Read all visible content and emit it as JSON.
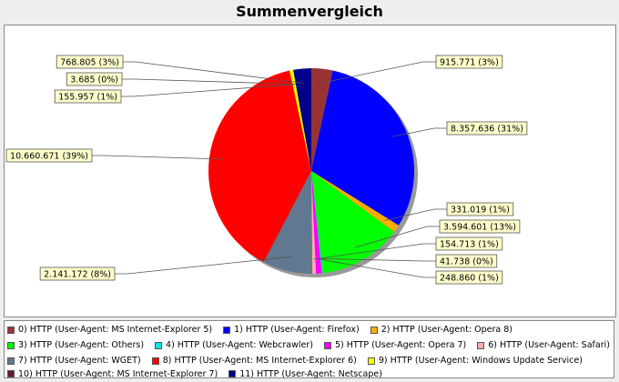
{
  "chart_data": {
    "type": "pie",
    "title": "Summenvergleich",
    "slices": [
      {
        "legend": "0) HTTP (User-Agent: MS Internet-Explorer 5)",
        "value": 915771,
        "label": "915.771 (3%)",
        "color": "#993333"
      },
      {
        "legend": "1) HTTP (User-Agent: Firefox)",
        "value": 8357636,
        "label": "8.357.636 (31%)",
        "color": "#0000ff"
      },
      {
        "legend": "2) HTTP (User-Agent: Opera 8)",
        "value": 331019,
        "label": "331.019 (1%)",
        "color": "#ffaa00"
      },
      {
        "legend": "3) HTTP (User-Agent: Others)",
        "value": 3594601,
        "label": "3.594.601 (13%)",
        "color": "#00ff00"
      },
      {
        "legend": "4) HTTP (User-Agent: Webcrawler)",
        "value": 41738,
        "label": "41.738 (0%)",
        "color": "#00e5ee"
      },
      {
        "legend": "5) HTTP (User-Agent: Opera 7)",
        "value": 248860,
        "label": "248.860 (1%)",
        "color": "#ff00ff"
      },
      {
        "legend": "6) HTTP (User-Agent: Safari)",
        "value": 154713,
        "label": "154.713 (1%)",
        "color": "#ffaaaa"
      },
      {
        "legend": "7) HTTP (User-Agent: WGET)",
        "value": 2141172,
        "label": "2.141.172 (8%)",
        "color": "#607890"
      },
      {
        "legend": "8) HTTP (User-Agent: MS Internet-Explorer 6)",
        "value": 10660671,
        "label": "10.660.671 (39%)",
        "color": "#ff0000"
      },
      {
        "legend": "9) HTTP (User-Agent: Windows Update Service)",
        "value": 155957,
        "label": "155.957 (1%)",
        "color": "#ffff00"
      },
      {
        "legend": "10) HTTP (User-Agent: MS Internet-Explorer 7)",
        "value": 3685,
        "label": "3.685 (0%)",
        "color": "#661a33"
      },
      {
        "legend": "11) HTTP (User-Agent: Netscape)",
        "value": 768805,
        "label": "768.805 (3%)",
        "color": "#00008b"
      }
    ],
    "legend_placement": "bottom"
  }
}
